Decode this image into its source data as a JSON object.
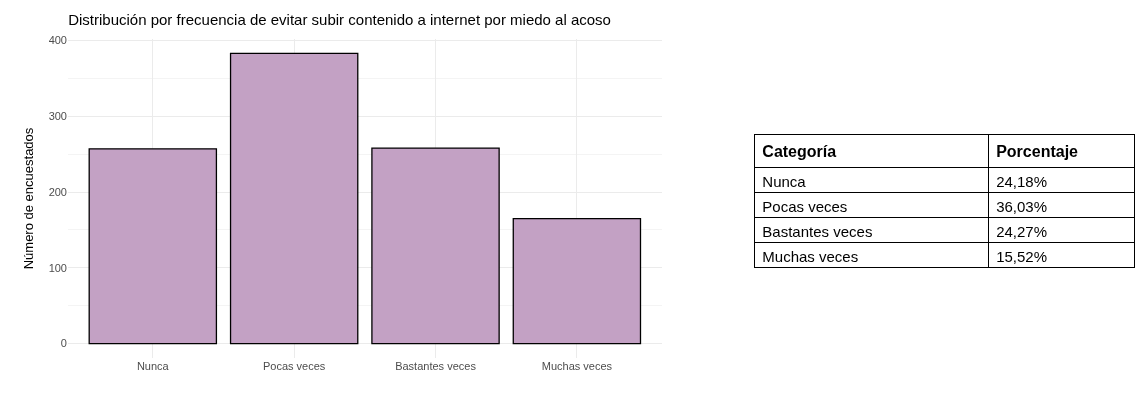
{
  "chart_data": [
    {
      "type": "bar",
      "title": "Distribución por frecuencia de evitar subir contenido a internet por miedo al acoso",
      "ylabel": "Número de encuestados",
      "categories": [
        "Nunca",
        "Pocas veces",
        "Bastantes veces",
        "Muchas veces"
      ],
      "values": [
        257,
        383,
        258,
        165
      ],
      "color": "#c3a1c4",
      "ylim": [
        -19,
        402
      ],
      "yticks": [
        0,
        100,
        200,
        300,
        400
      ],
      "grid": true
    },
    {
      "type": "other",
      "annotations": [
        "Categoría",
        "Porcentaje"
      ],
      "categories": [
        "Nunca",
        "Pocas veces",
        "Bastantes veces",
        "Muchas veces"
      ],
      "value_labels": [
        "24,18%",
        "36,03%",
        "24,27%",
        "15,52%"
      ]
    }
  ]
}
